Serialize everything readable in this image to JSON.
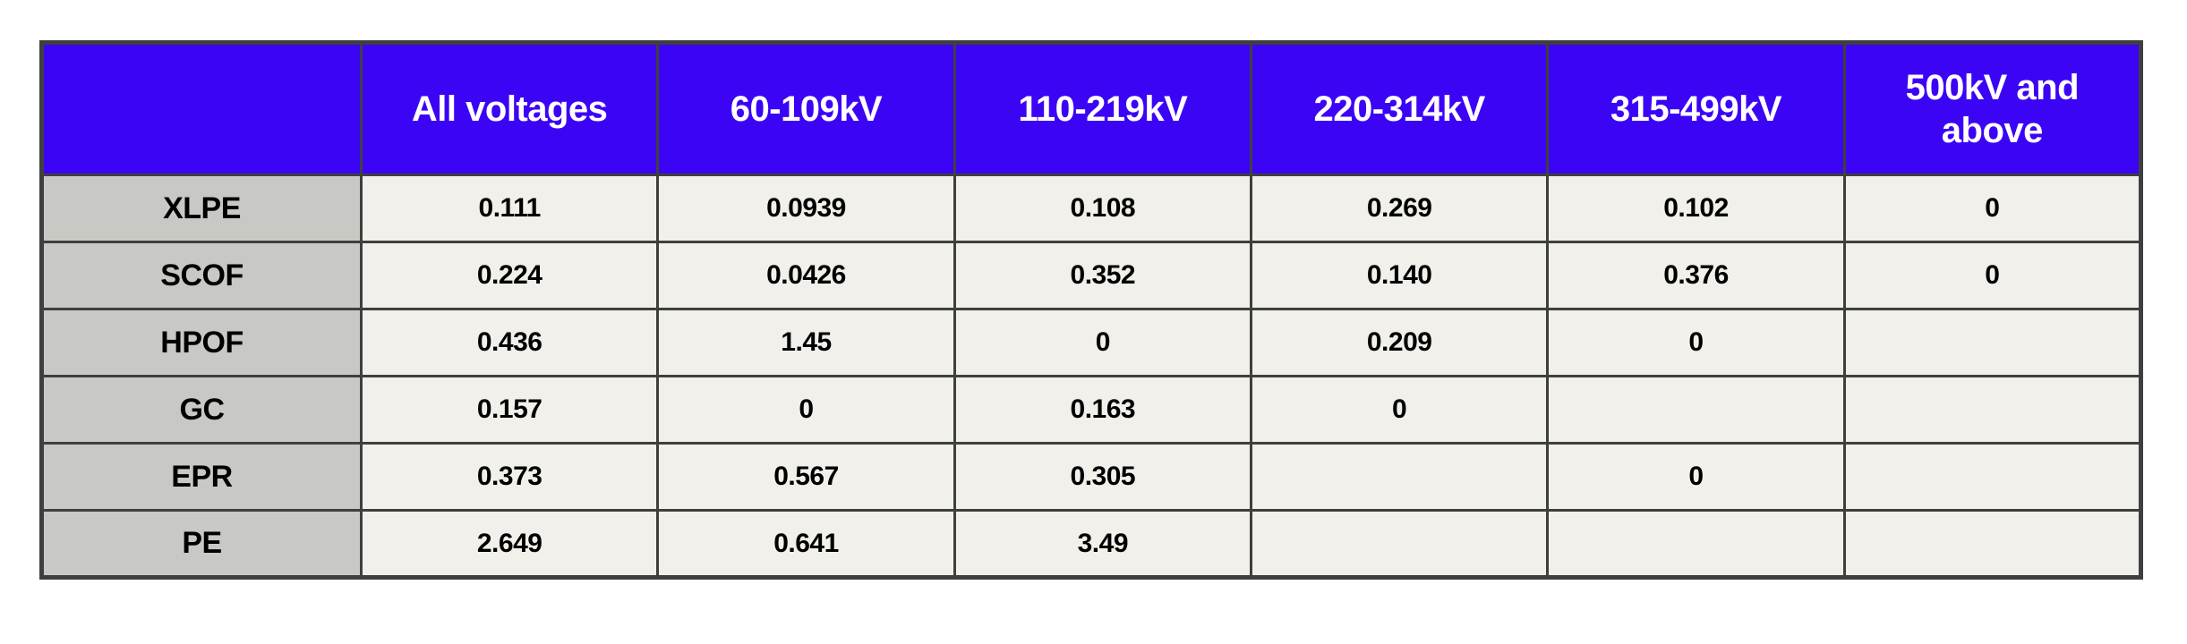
{
  "colors": {
    "header_bg": "#3C04F5",
    "header_text": "#FFFFFF",
    "row_header_bg": "#C8C9C4",
    "cell_bg": "#F1F0EA",
    "border_color": "#3F3F3F",
    "value_text": "#000000",
    "page_bg": "#FFFFFF"
  },
  "chart_data": {
    "type": "table",
    "title": "",
    "legend": "none",
    "grid": "on",
    "columns": [
      "",
      "All voltages",
      "60-109kV",
      "110-219kV",
      "220-314kV",
      "315-499kV",
      "500kV and above"
    ],
    "rows": [
      {
        "label": "XLPE",
        "values": [
          "0.111",
          "0.0939",
          "0.108",
          "0.269",
          "0.102",
          "0"
        ]
      },
      {
        "label": "SCOF",
        "values": [
          "0.224",
          "0.0426",
          "0.352",
          "0.140",
          "0.376",
          "0"
        ]
      },
      {
        "label": "HPOF",
        "values": [
          "0.436",
          "1.45",
          "0",
          "0.209",
          "0",
          ""
        ]
      },
      {
        "label": "GC",
        "values": [
          "0.157",
          "0",
          "0.163",
          "0",
          "",
          ""
        ]
      },
      {
        "label": "EPR",
        "values": [
          "0.373",
          "0.567",
          "0.305",
          "",
          "0",
          ""
        ]
      },
      {
        "label": "PE",
        "values": [
          "2.649",
          "0.641",
          "3.49",
          "",
          "",
          ""
        ]
      }
    ]
  }
}
